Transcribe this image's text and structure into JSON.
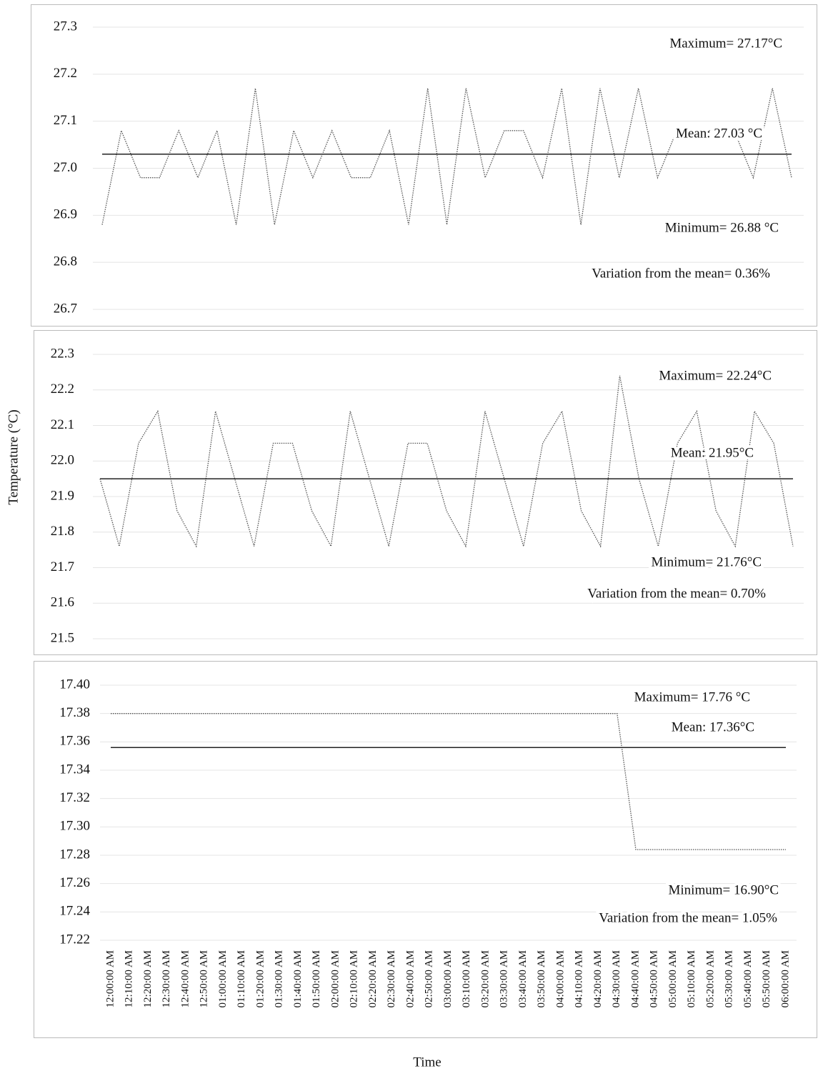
{
  "y_label": "Temperature (°C)",
  "x_label": "Time",
  "chart_data": [
    {
      "type": "line",
      "ylim": [
        26.7,
        27.3
      ],
      "yticks": [
        26.7,
        26.8,
        26.9,
        {
          "value": 27,
          "label": "27.0"
        },
        27.1,
        27.2,
        27.3
      ],
      "grid": true,
      "series": [
        {
          "color": "#555555",
          "values": [
            26.88,
            27.08,
            26.98,
            26.98,
            27.08,
            26.98,
            27.08,
            26.88,
            27.17,
            26.88,
            27.08,
            26.98,
            27.08,
            26.98,
            26.98,
            27.08,
            26.88,
            27.17,
            26.88,
            27.17,
            26.98,
            27.08,
            27.08,
            26.98,
            27.17,
            26.88,
            27.17,
            26.98,
            27.17,
            26.98,
            27.08,
            27.08,
            27.08,
            27.08,
            26.98,
            27.17,
            26.98
          ]
        }
      ],
      "mean_line": 27.03,
      "annotations": [
        "Maximum=  27.17°C",
        "Mean: 27.03 °C",
        "Minimum=  26.88 °C",
        "Variation from the mean= 0.36%"
      ]
    },
    {
      "type": "line",
      "ylim": [
        21.5,
        22.3
      ],
      "yticks": [
        21.5,
        21.6,
        21.7,
        21.8,
        21.9,
        {
          "value": 22,
          "label": "22.0"
        },
        22.1,
        22.2,
        22.3
      ],
      "grid": true,
      "series": [
        {
          "color": "#555555",
          "values": [
            21.95,
            21.76,
            22.05,
            22.14,
            21.86,
            21.76,
            22.14,
            21.95,
            21.76,
            22.05,
            22.05,
            21.86,
            21.76,
            22.14,
            21.95,
            21.76,
            22.05,
            22.05,
            21.86,
            21.76,
            22.14,
            21.95,
            21.76,
            22.05,
            22.14,
            21.86,
            21.76,
            22.24,
            21.95,
            21.76,
            22.05,
            22.14,
            21.86,
            21.76,
            22.14,
            22.05,
            21.76
          ]
        }
      ],
      "mean_line": 21.95,
      "annotations": [
        "Maximum=  22.24°C",
        "Mean: 21.95°C",
        "Minimum=  21.76°C",
        "Variation from the mean= 0.70%"
      ]
    },
    {
      "type": "line",
      "ylim": [
        17.22,
        17.4
      ],
      "yticks": [
        17.22,
        17.24,
        17.26,
        17.28,
        {
          "value": 17.3,
          "label": "17.30"
        },
        17.32,
        17.34,
        17.36,
        17.38,
        {
          "value": 17.4,
          "label": "17.40"
        }
      ],
      "grid": true,
      "categories": [
        "12:00:00 AM",
        "12:10:00 AM",
        "12:20:00 AM",
        "12:30:00 AM",
        "12:40:00 AM",
        "12:50:00 AM",
        "01:00:00 AM",
        "01:10:00 AM",
        "01:20:00 AM",
        "01:30:00 AM",
        "01:40:00 AM",
        "01:50:00 AM",
        "02:00:00 AM",
        "02:10:00 AM",
        "02:20:00 AM",
        "02:30:00 AM",
        "02:40:00 AM",
        "02:50:00 AM",
        "03:00:00 AM",
        "03:10:00 AM",
        "03:20:00 AM",
        "03:30:00 AM",
        "03:40:00 AM",
        "03:50:00 AM",
        "04:00:00 AM",
        "04:10:00 AM",
        "04:20:00 AM",
        "04:30:00 AM",
        "04:40:00 AM",
        "04:50:00 AM",
        "05:00:00 AM",
        "05:10:00 AM",
        "05:20:00 AM",
        "05:30:00 AM",
        "05:40:00 AM",
        "05:50:00 AM",
        "06:00:00 AM"
      ],
      "series": [
        {
          "color": "#555555",
          "values": [
            17.38,
            17.38,
            17.38,
            17.38,
            17.38,
            17.38,
            17.38,
            17.38,
            17.38,
            17.38,
            17.38,
            17.38,
            17.38,
            17.38,
            17.38,
            17.38,
            17.38,
            17.38,
            17.38,
            17.38,
            17.38,
            17.38,
            17.38,
            17.38,
            17.38,
            17.38,
            17.38,
            17.38,
            17.284,
            17.284,
            17.284,
            17.284,
            17.284,
            17.284,
            17.284,
            17.284,
            17.284
          ]
        }
      ],
      "mean_line": 17.356,
      "annotations": [
        "Maximum=  17.76 °C",
        "Mean: 17.36°C",
        "Minimum=  16.90°C",
        "Variation from the mean= 1.05%"
      ]
    }
  ]
}
